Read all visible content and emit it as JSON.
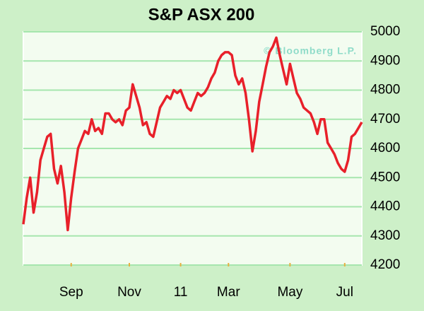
{
  "chart_data": {
    "type": "line",
    "title": "S&P ASX 200",
    "annotation": "© Bloomberg L.P.",
    "color": "#e8202a",
    "grid": true,
    "y_axis_side": "right",
    "ylim": [
      4200,
      5000
    ],
    "yticks": [
      4200,
      4300,
      4400,
      4500,
      4600,
      4700,
      4800,
      4900,
      5000
    ],
    "categories": [
      null,
      null,
      null,
      null,
      null,
      null,
      null,
      null,
      null,
      null,
      null,
      null,
      null,
      null,
      "Sep",
      null,
      null,
      null,
      null,
      null,
      null,
      null,
      null,
      null,
      null,
      null,
      null,
      null,
      null,
      null,
      null,
      "Nov",
      null,
      null,
      null,
      null,
      null,
      null,
      null,
      null,
      null,
      null,
      null,
      null,
      null,
      null,
      "11",
      null,
      null,
      null,
      null,
      null,
      null,
      null,
      null,
      null,
      null,
      null,
      null,
      null,
      "Mar",
      null,
      null,
      null,
      null,
      null,
      null,
      null,
      null,
      null,
      null,
      null,
      null,
      null,
      null,
      null,
      null,
      null,
      "May",
      null,
      null,
      null,
      null,
      null,
      null,
      null,
      null,
      null,
      null,
      null,
      null,
      null,
      null,
      null,
      "Jul",
      null,
      null,
      null,
      null,
      null
    ],
    "values": [
      4340,
      4430,
      4500,
      4380,
      4450,
      4560,
      4600,
      4640,
      4650,
      4530,
      4480,
      4540,
      4450,
      4320,
      4430,
      4520,
      4600,
      4630,
      4660,
      4650,
      4700,
      4660,
      4670,
      4650,
      4720,
      4720,
      4700,
      4690,
      4700,
      4680,
      4730,
      4740,
      4820,
      4780,
      4740,
      4680,
      4690,
      4650,
      4640,
      4690,
      4740,
      4760,
      4780,
      4770,
      4800,
      4790,
      4800,
      4770,
      4740,
      4730,
      4760,
      4790,
      4780,
      4790,
      4810,
      4840,
      4860,
      4900,
      4920,
      4930,
      4930,
      4920,
      4850,
      4820,
      4840,
      4790,
      4700,
      4590,
      4660,
      4760,
      4820,
      4880,
      4930,
      4950,
      4980,
      4920,
      4870,
      4820,
      4890,
      4840,
      4790,
      4770,
      4740,
      4730,
      4720,
      4690,
      4650,
      4700,
      4700,
      4620,
      4600,
      4580,
      4550,
      4530,
      4520,
      4560,
      4640,
      4650,
      4670,
      4690
    ]
  }
}
